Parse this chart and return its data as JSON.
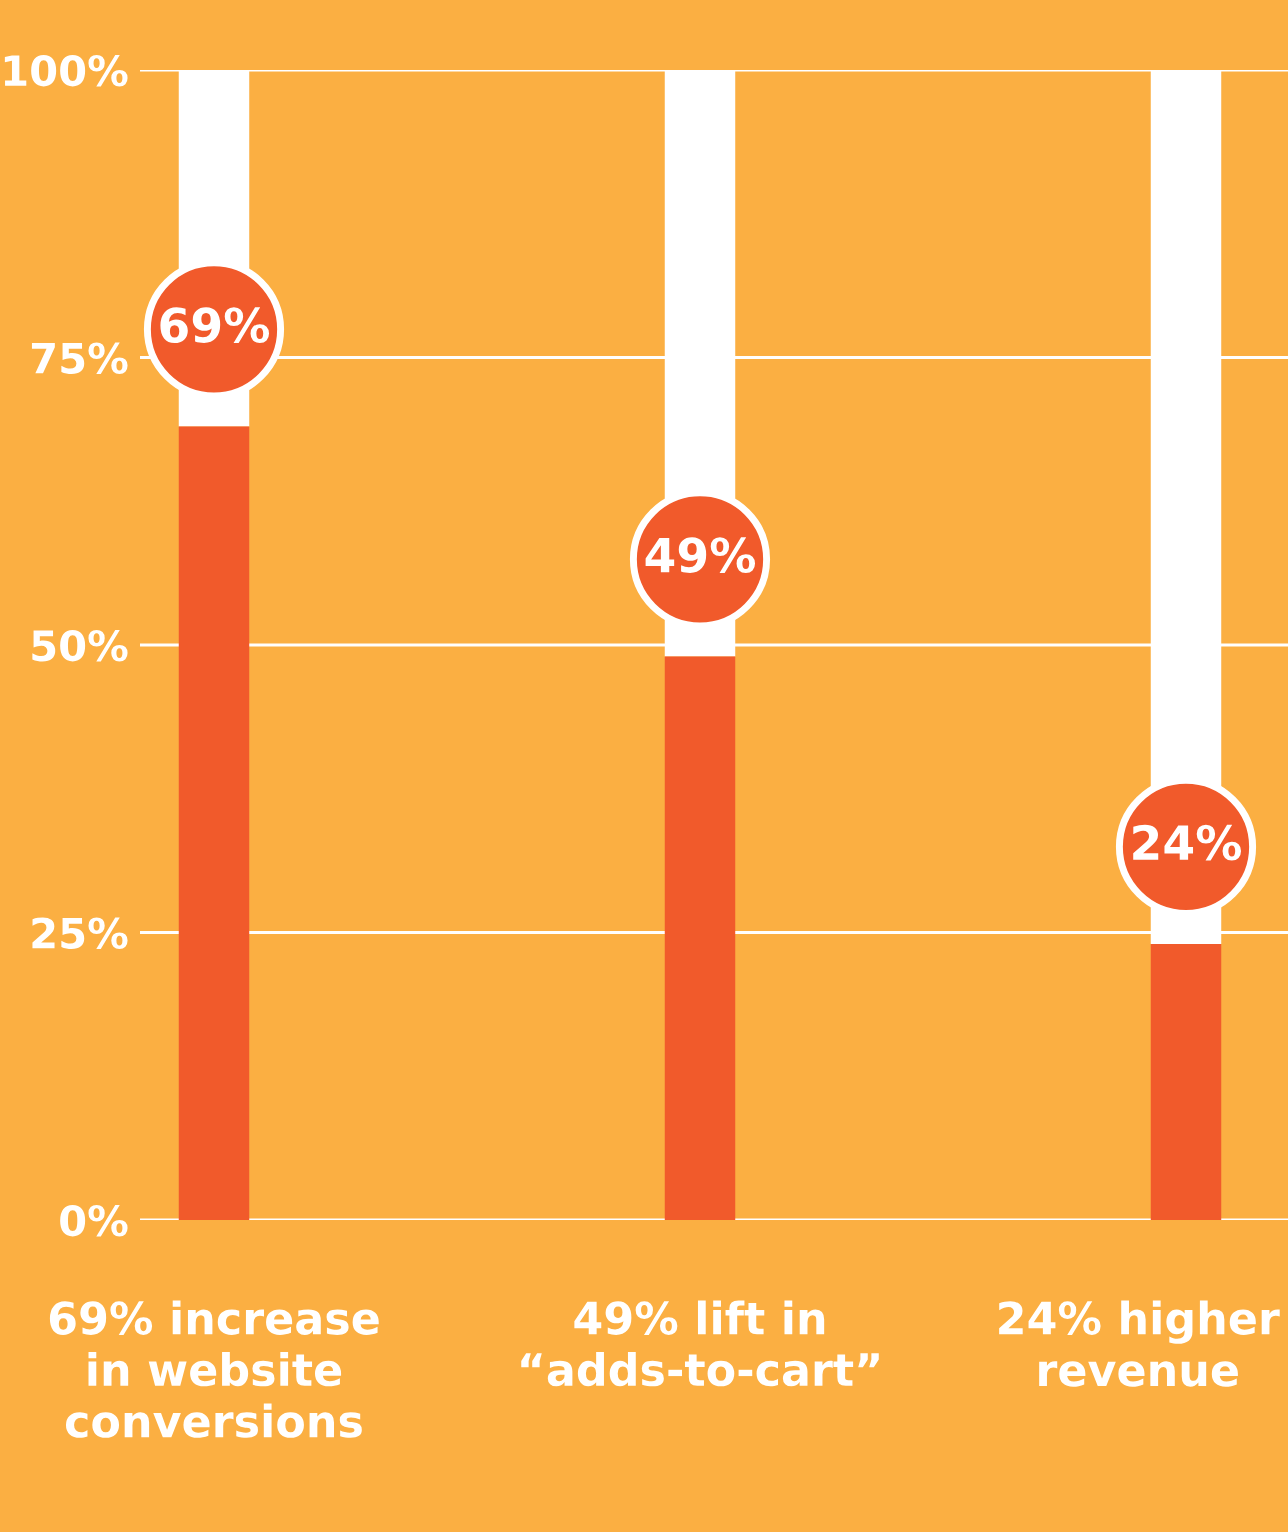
{
  "chart_data": {
    "type": "bar",
    "stacked": true,
    "categories": [
      "69% increase\nin website\nconversions",
      "49% lift in\n“adds-to-cart”",
      "24% higher\nrevenue"
    ],
    "series": [
      {
        "color": "#f15a2b",
        "values": [
          69,
          49,
          24
        ],
        "value_labels": [
          "69%",
          "49%",
          "24%"
        ]
      },
      {
        "color": "#ffffff",
        "values": [
          31,
          51,
          76
        ]
      }
    ],
    "ylim": [
      0,
      100
    ],
    "yticks": [
      {
        "value": 0,
        "label": "0%"
      },
      {
        "value": 25,
        "label": "25%"
      },
      {
        "value": 50,
        "label": "50%"
      },
      {
        "value": 75,
        "label": "75%"
      },
      {
        "value": 100,
        "label": "100%"
      }
    ],
    "grid": "y"
  }
}
